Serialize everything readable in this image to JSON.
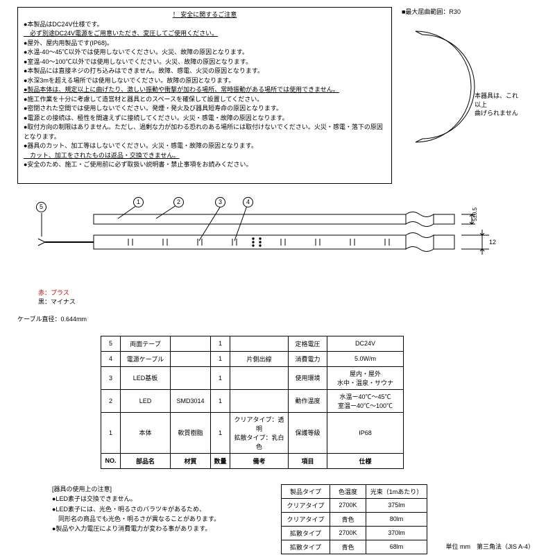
{
  "notice": {
    "title": "！  安全に関するご注意",
    "lines": [
      {
        "t": "●本製品はDC24V仕様です。",
        "u": false
      },
      {
        "t": "　必ず別途DC24V電源をご用意いただき、変圧してご使用ください。",
        "u": true
      },
      {
        "t": "●屋外、屋内用製品です(IP68)。",
        "u": false
      },
      {
        "t": "●水温-40～45℃以外では使用しないでください。火災、故障の原因となります。",
        "u": false
      },
      {
        "t": "●室温-40～100℃以外では使用しないでください。火災、故障の原因となります。",
        "u": false
      },
      {
        "t": "●本製品には直接ネジの打ち込みはできません。故障、感電、火災の原因となります。",
        "u": false
      },
      {
        "t": "●水深3mを超える場所では使用しないでください。故障の原因となります。",
        "u": false
      },
      {
        "t": "●製品本体は、規定以上に曲げたり、激しい振動や衝撃が加わる場所、常時振動がある場所では使用できません。",
        "u": true
      },
      {
        "t": "●施工作業を十分に考慮して造営材と器具とのスペースを確保して設置してください。",
        "u": false
      },
      {
        "t": "●密閉された空間では使用しないでください。発煙・発火及び器具短寿命の原因となります。",
        "u": false
      },
      {
        "t": "●電源との接続は、極性を間違えずに接続してください。火災・感電・故障の原因となります。",
        "u": false
      },
      {
        "t": "●取付方向の制限はありません。ただし、過剰な力が加わる恐れのある場所には取付けないでください。火災・感電・落下の原因となります。",
        "u": false
      },
      {
        "t": "●器具のカット、加工等はしないでください。火災・感電・故障の原因となります。",
        "u": false
      },
      {
        "t": "　カット、加工をされたものは返品・交換できません。",
        "u": true
      },
      {
        "t": "●安全のため、施工・ご使用前に必ず取扱い説明書・禁止事項をお読みください。",
        "u": false
      }
    ]
  },
  "bend": {
    "title": "■最大屈曲範囲：R30",
    "note1": "本器具は、これ以上",
    "note2": "曲げられません"
  },
  "diagram": {
    "callouts": [
      "1",
      "2",
      "3",
      "4",
      "5"
    ],
    "dim_h": "5±0.5",
    "dim_w": "12",
    "red_label": "赤：プラス",
    "black_label": "黒：マイナス",
    "cable": "ケーブル直径：0.644mm"
  },
  "parts": {
    "headers": [
      "NO.",
      "部品名",
      "材質",
      "数量",
      "備考",
      "項目",
      "仕様"
    ],
    "rows": [
      [
        "5",
        "両面テープ",
        "",
        "1",
        "",
        "定格電圧",
        "DC24V"
      ],
      [
        "4",
        "電源ケーブル",
        "",
        "1",
        "片側出線",
        "消費電力",
        "5.0W/m"
      ],
      [
        "3",
        "LED基板",
        "",
        "1",
        "",
        "使用環境",
        "屋内・屋外\n水中・温泉・サウナ"
      ],
      [
        "2",
        "LED",
        "SMD3014",
        "1",
        "",
        "動作温度",
        "水温ー40℃～45℃\n室温ー40℃～100℃"
      ],
      [
        "1",
        "本体",
        "軟質樹脂",
        "1",
        "クリアタイプ：透明\n拡散タイプ：乳白色",
        "保護等級",
        "IP68"
      ]
    ]
  },
  "usage": {
    "title": "[器具の使用上の注意]",
    "lines": [
      "●LED素子は交換できません。",
      "●LED素子には、光色・明るさのバラツキがあるため、",
      "　同形名の商品でも光色・明るさが異なることがあります。",
      "●製品や入力電圧により消費電力が変わる事があります。"
    ]
  },
  "types": {
    "headers": [
      "製品タイプ",
      "色温度",
      "光束（1mあたり）"
    ],
    "rows": [
      [
        "クリアタイプ",
        "2700K",
        "375lm"
      ],
      [
        "クリアタイプ",
        "青色",
        "80lm"
      ],
      [
        "拡散タイプ",
        "2700K",
        "370lm"
      ],
      [
        "拡散タイプ",
        "青色",
        "68lm"
      ]
    ]
  },
  "footer": "単位 mm　第三角法（JIS A-4）",
  "colors": {
    "border": "#000000",
    "red": "#cc0000"
  }
}
